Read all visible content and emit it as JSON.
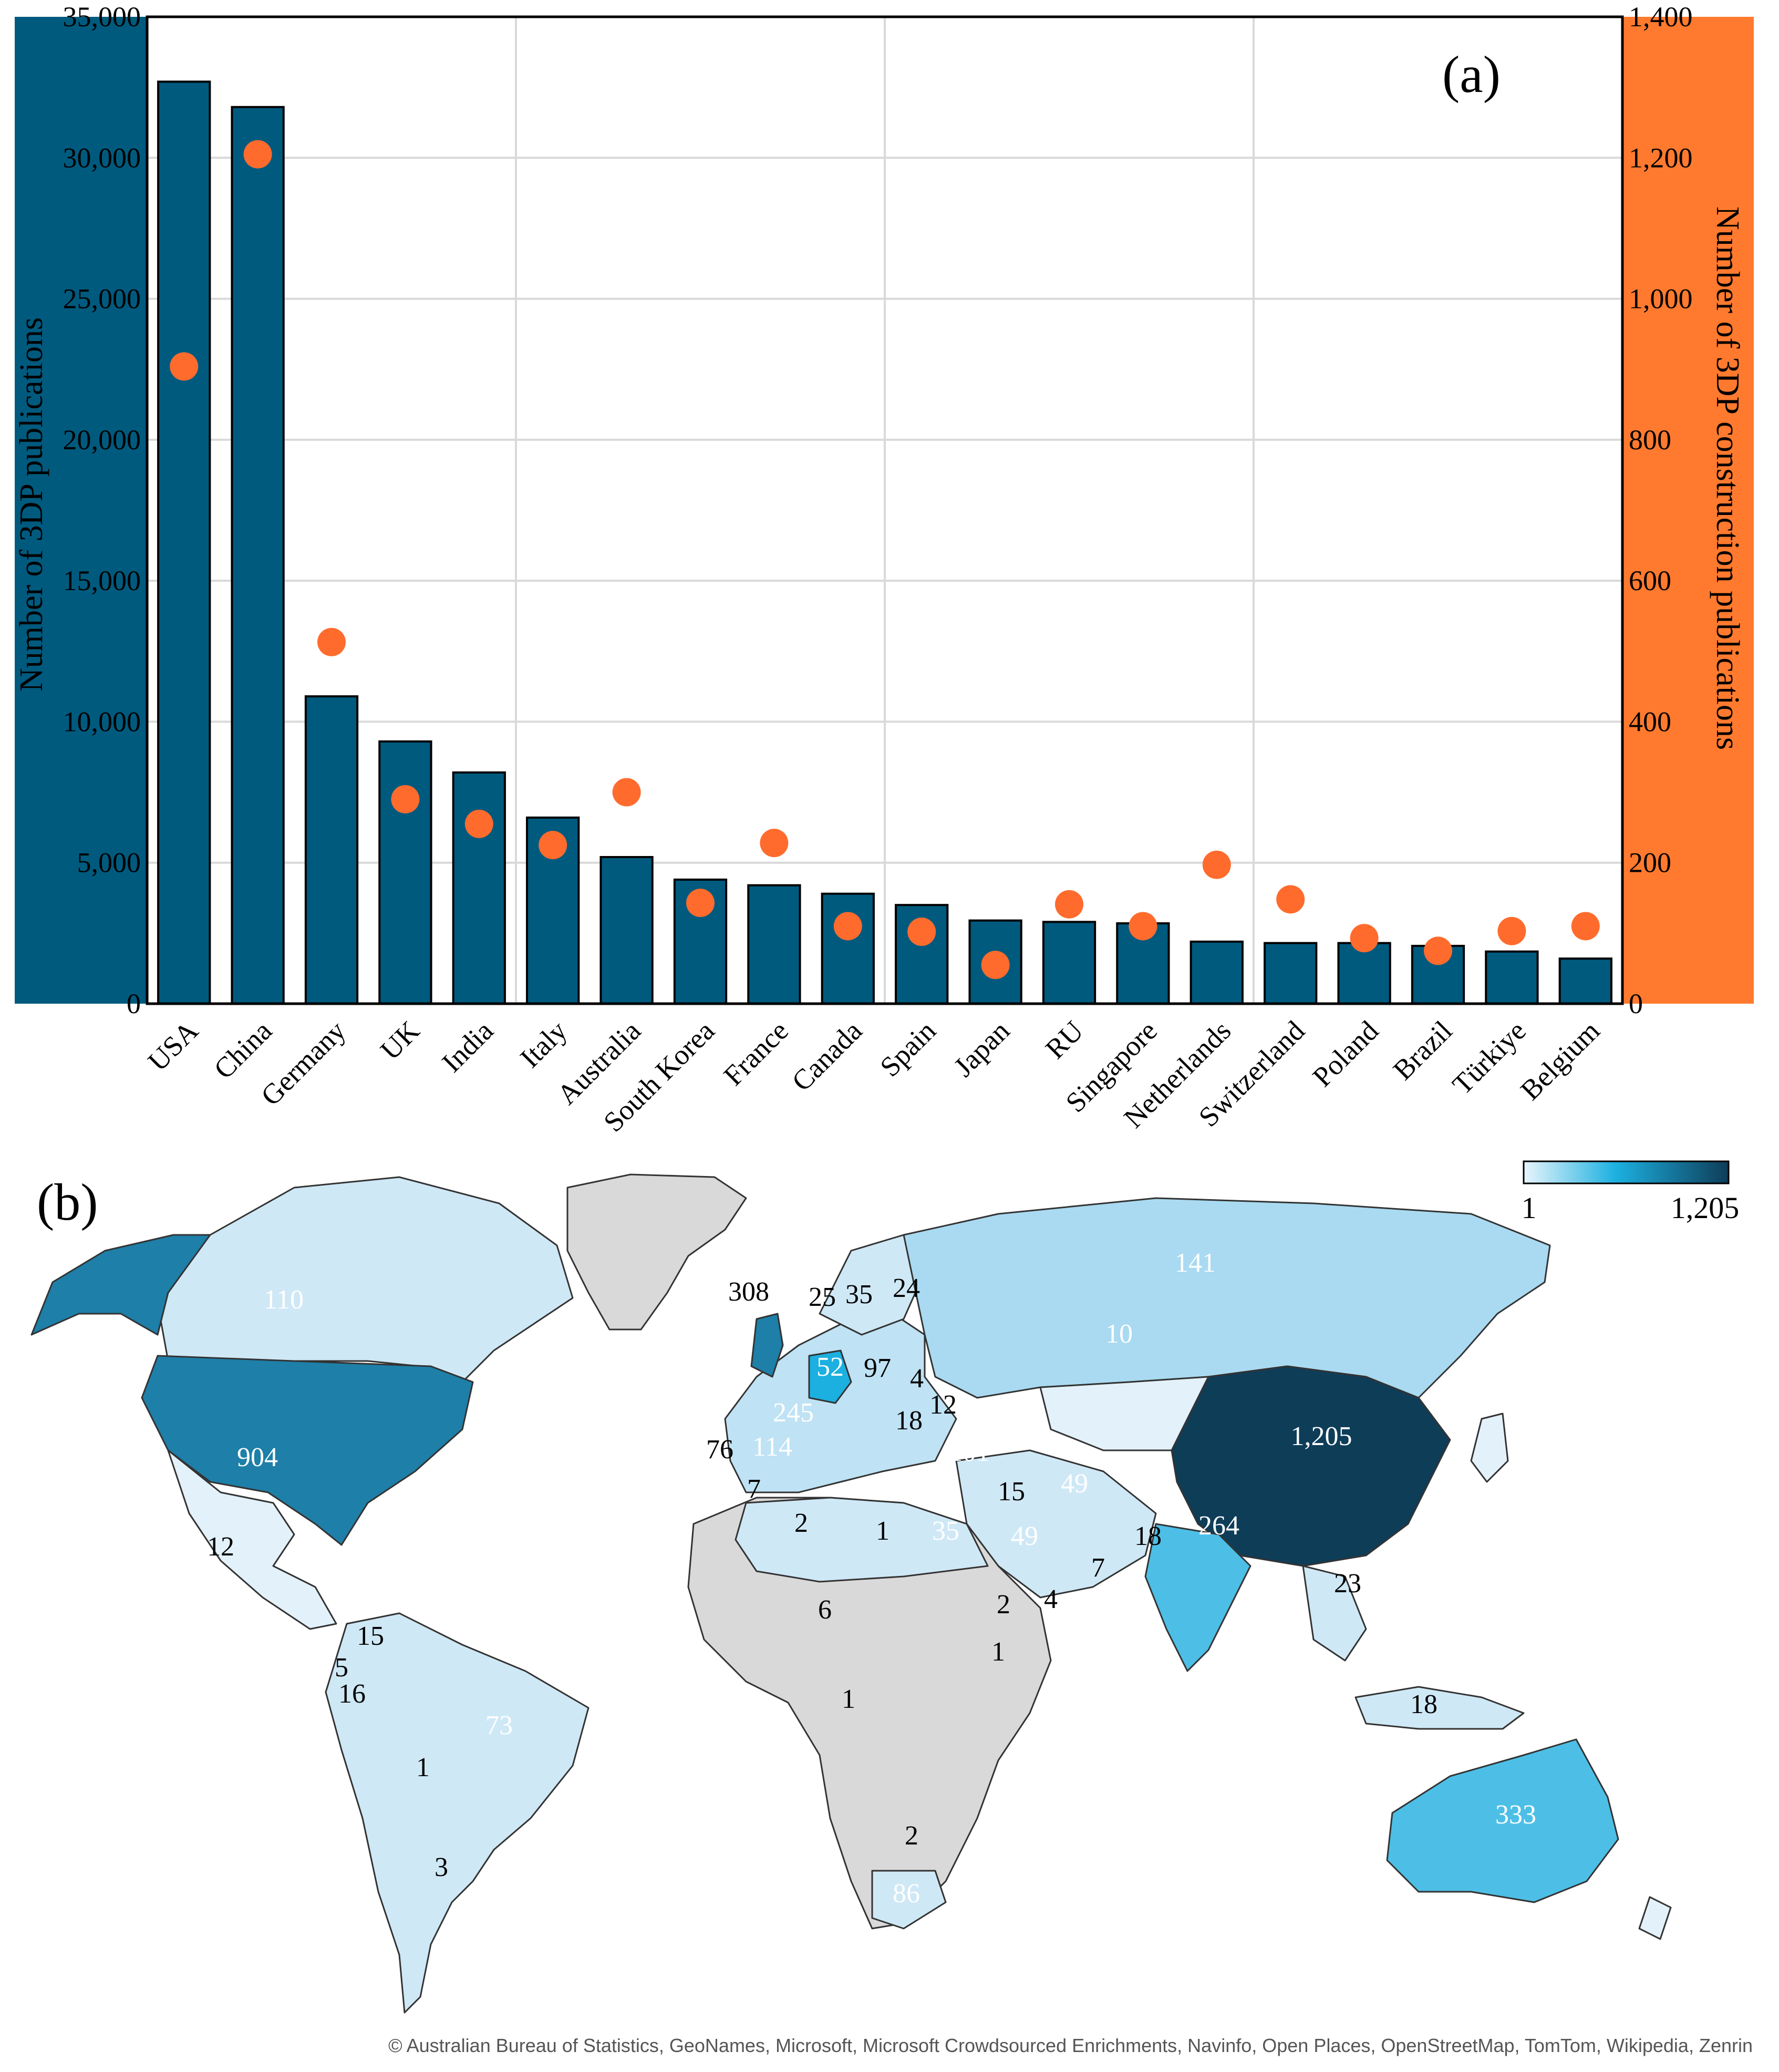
{
  "colors": {
    "bar": "#005A7E",
    "dot": "#FF6B2D",
    "left_axis_band": "#005A7E",
    "right_axis_band": "#FF7A2E",
    "map_grey": "#D9D9D9",
    "map_low": "#CFE8F6",
    "map_mid": "#1CB0E0",
    "map_high": "#0E3D58"
  },
  "chart_data": [
    {
      "type": "bar",
      "panel_label": "(a)",
      "categories": [
        "USA",
        "China",
        "Germany",
        "UK",
        "India",
        "Italy",
        "Australia",
        "South Korea",
        "France",
        "Canada",
        "Spain",
        "Japan",
        "RU",
        "Singapore",
        "Netherlands",
        "Switzerland",
        "Poland",
        "Brazil",
        "Türkiye",
        "Belgium"
      ],
      "series": [
        {
          "name": "",
          "axis": "left",
          "kind": "bar",
          "values": [
            32700,
            31800,
            10900,
            9300,
            8200,
            6600,
            5200,
            4400,
            4200,
            3900,
            3500,
            2950,
            2900,
            2850,
            2200,
            2150,
            2150,
            2050,
            1850,
            1600
          ]
        },
        {
          "name": "",
          "axis": "right",
          "kind": "scatter",
          "values": [
            904,
            1205,
            513,
            290,
            255,
            225,
            300,
            143,
            228,
            110,
            102,
            55,
            141,
            110,
            197,
            148,
            93,
            75,
            103,
            110
          ]
        }
      ],
      "ylabel": "Number of 3DP publications",
      "y2label": "Number of 3DP construction publications",
      "ylim": [
        0,
        35000
      ],
      "y2lim": [
        0,
        1400
      ],
      "yticks": [
        "0",
        "5,000",
        "10,000",
        "15,000",
        "20,000",
        "25,000",
        "30,000",
        "35,000"
      ],
      "y2ticks": [
        "0",
        "200",
        "400",
        "600",
        "800",
        "1,000",
        "1,200",
        "1,400"
      ],
      "grid": true
    },
    {
      "type": "map",
      "panel_label": "(b)",
      "legend_min": "1",
      "legend_max": "1,205",
      "region_labels": [
        "110",
        "904",
        "12",
        "15",
        "5",
        "16",
        "73",
        "1",
        "3",
        "308",
        "25",
        "35",
        "24",
        "52",
        "97",
        "4",
        "12",
        "245",
        "18",
        "114",
        "76",
        "7",
        "2",
        "1",
        "35",
        "101",
        "15",
        "49",
        "49",
        "18",
        "7",
        "4",
        "6",
        "2",
        "1",
        "1",
        "2",
        "86",
        "141",
        "10",
        "1,205",
        "264",
        "23",
        "18",
        "333"
      ]
    }
  ],
  "map_credit": "© Australian Bureau of Statistics, GeoNames, Microsoft, Microsoft Crowdsourced Enrichments, Navinfo, Open Places, OpenStreetMap, TomTom, Wikipedia, Zenrin"
}
